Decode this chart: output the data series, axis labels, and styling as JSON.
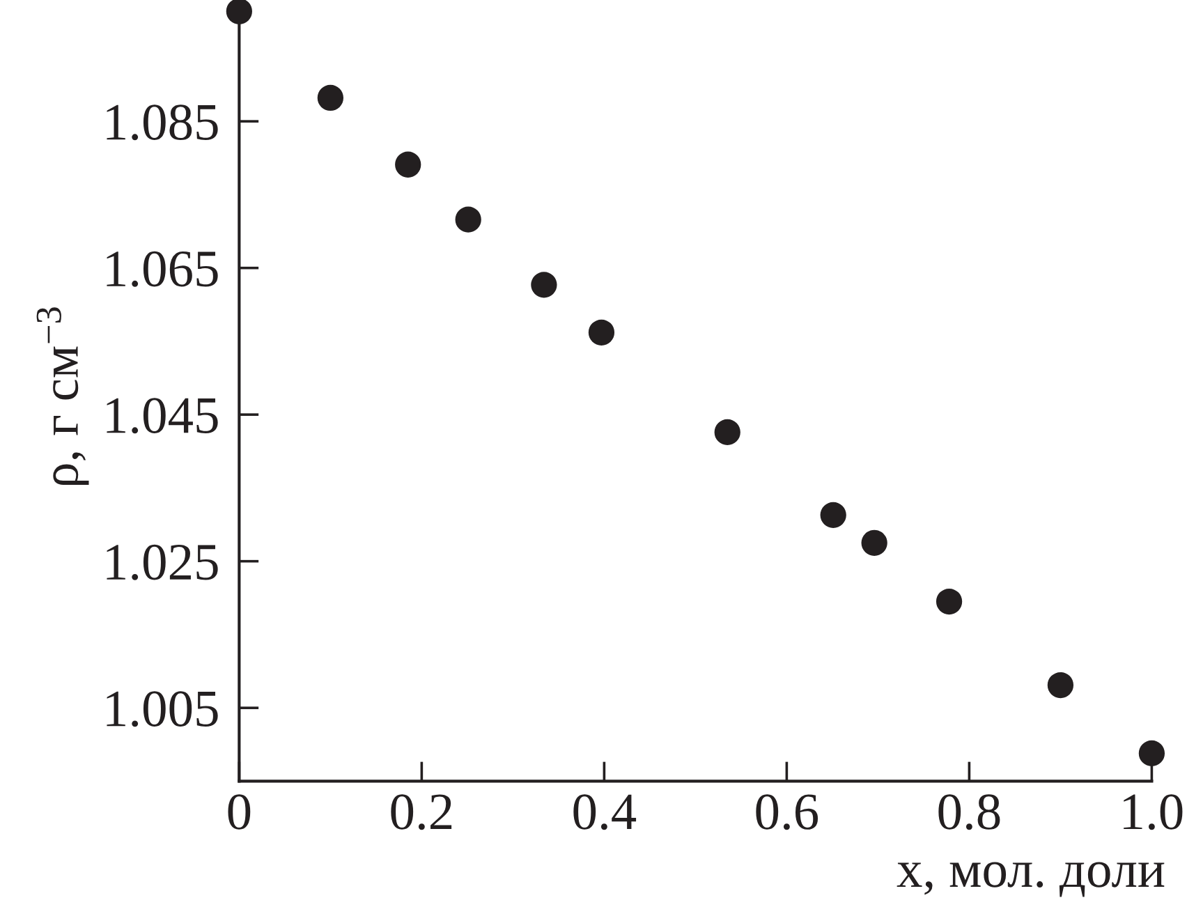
{
  "chart_data": {
    "type": "scatter",
    "xlabel": "x, мол. доли",
    "ylabel": "ρ, г см$^{−3}$",
    "x": [
      0,
      0.1,
      0.185,
      0.251,
      0.334,
      0.397,
      0.535,
      0.651,
      0.696,
      0.778,
      0.9,
      1.0
    ],
    "values": [
      1.1,
      1.0882,
      1.0791,
      1.0716,
      1.0627,
      1.0562,
      1.0426,
      1.0313,
      1.0275,
      1.0195,
      1.0081,
      0.9988
    ],
    "color": "#231f20",
    "marker": "circle",
    "grid": false,
    "xlim": [
      0,
      1.0
    ],
    "ylim": [
      0.995,
      1.1
    ],
    "xticks": [
      0,
      0.2,
      0.4,
      0.6,
      0.8,
      {
        "value": 1,
        "label": "1.0"
      }
    ],
    "yticks": [
      1.005,
      1.025,
      1.045,
      1.065,
      1.085
    ]
  }
}
